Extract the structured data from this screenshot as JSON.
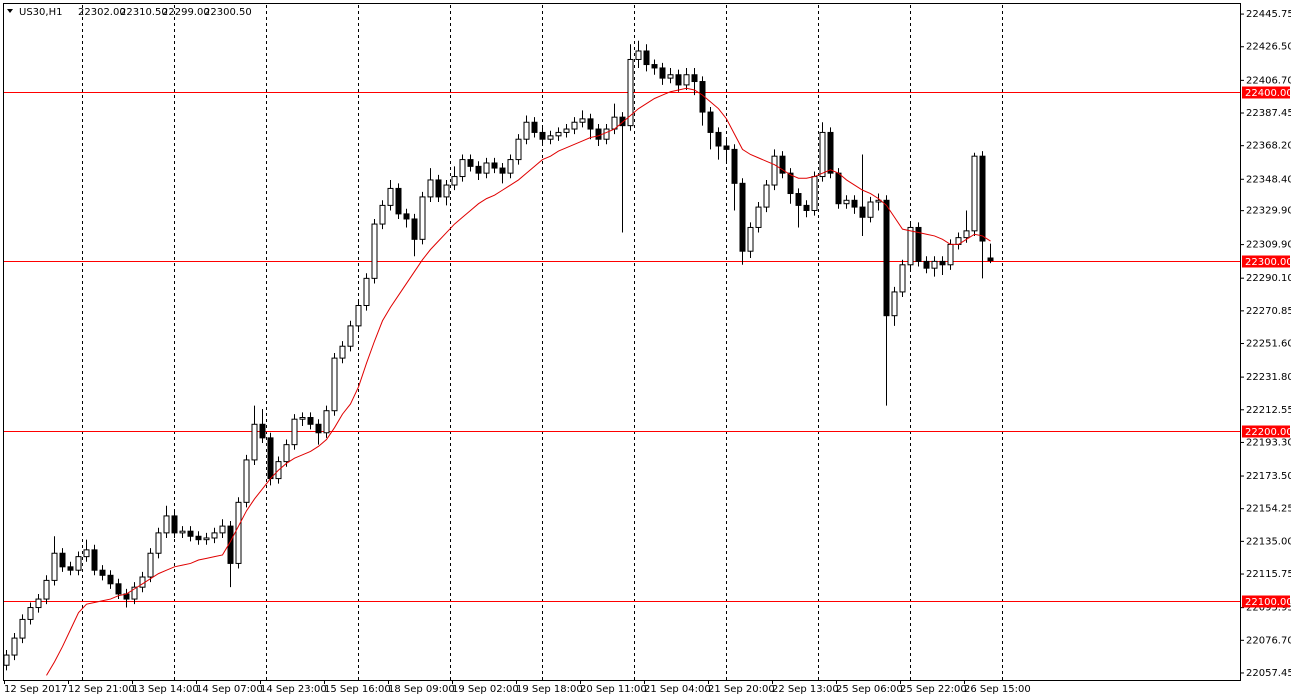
{
  "header": {
    "symbol": "US30,H1",
    "quote": [
      "22302.00",
      "22310.50",
      "22299.00",
      "22300.50"
    ]
  },
  "chart_data": {
    "type": "candlestick",
    "categories": [
      "12 Sep 2017",
      null,
      null,
      null,
      null,
      null,
      null,
      null,
      "12 Sep 21:00",
      null,
      null,
      null,
      null,
      null,
      null,
      null,
      "13 Sep 14:00",
      null,
      null,
      null,
      null,
      null,
      null,
      null,
      "14 Sep 07:00",
      null,
      null,
      null,
      null,
      null,
      null,
      null,
      "14 Sep 23:00",
      null,
      null,
      null,
      null,
      null,
      null,
      null,
      "15 Sep 16:00",
      null,
      null,
      null,
      null,
      null,
      null,
      null,
      "18 Sep 09:00",
      null,
      null,
      null,
      null,
      null,
      null,
      null,
      "19 Sep 02:00",
      null,
      null,
      null,
      null,
      null,
      null,
      null,
      "19 Sep 18:00",
      null,
      null,
      null,
      null,
      null,
      null,
      null,
      "20 Sep 11:00",
      null,
      null,
      null,
      null,
      null,
      null,
      null,
      "21 Sep 04:00",
      null,
      null,
      null,
      null,
      null,
      null,
      null,
      "21 Sep 20:00",
      null,
      null,
      null,
      null,
      null,
      null,
      null,
      "22 Sep 13:00",
      null,
      null,
      null,
      null,
      null,
      null,
      null,
      "25 Sep 06:00",
      null,
      null,
      null,
      null,
      null,
      null,
      null,
      "25 Sep 22:00",
      null,
      null,
      null,
      null,
      null,
      null,
      null,
      "26 Sep 15:00",
      null,
      null,
      null
    ],
    "open": [
      22062,
      22068,
      22078,
      22089,
      22096,
      22101,
      22112,
      22128,
      22120,
      22118,
      22126,
      22130,
      22118,
      22115,
      22110,
      22104,
      22101,
      22108,
      22114,
      22128,
      22140,
      22150,
      22140,
      22141,
      22138,
      22136,
      22137,
      22140,
      22144,
      22122,
      22158,
      22183,
      22204,
      22196,
      22172,
      22182,
      22192,
      22207,
      22208,
      22204,
      22199,
      22212,
      22243,
      22250,
      22262,
      22274,
      22290,
      22322,
      22333,
      22343,
      22328,
      22325,
      22313,
      22338,
      22348,
      22338,
      22345,
      22350,
      22360,
      22356,
      22352,
      22358,
      22355,
      22352,
      22360,
      22372,
      22382,
      22376,
      22372,
      22374,
      22376,
      22378,
      22382,
      22384,
      22378,
      22372,
      22378,
      22385,
      22380,
      22419,
      22424,
      22416,
      22414,
      22408,
      22410,
      22404,
      22410,
      22406,
      22388,
      22376,
      22368,
      22366,
      22346,
      22306,
      22320,
      22332,
      22345,
      22362,
      22352,
      22340,
      22333,
      22330,
      22350,
      22376,
      22352,
      22334,
      22336,
      22332,
      22326,
      22335,
      22336,
      22268,
      22282,
      22298,
      22320,
      22300,
      22296,
      22300,
      22298,
      22310,
      22314,
      22318,
      22362,
      22302
    ],
    "high": [
      22071,
      22081,
      22092,
      22099,
      22104,
      22115,
      22138,
      22131,
      22123,
      22129,
      22136,
      22133,
      22121,
      22118,
      22113,
      22107,
      22111,
      22117,
      22131,
      22143,
      22156,
      22153,
      22144,
      22144,
      22141,
      22140,
      22143,
      22148,
      22147,
      22161,
      22186,
      22215,
      22213,
      22199,
      22185,
      22195,
      22210,
      22211,
      22211,
      22207,
      22215,
      22246,
      22253,
      22265,
      22277,
      22293,
      22325,
      22336,
      22348,
      22346,
      22331,
      22328,
      22341,
      22355,
      22351,
      22348,
      22356,
      22363,
      22363,
      22359,
      22361,
      22361,
      22358,
      22363,
      22375,
      22386,
      22385,
      22379,
      22377,
      22379,
      22381,
      22385,
      22389,
      22387,
      22381,
      22381,
      22393,
      22388,
      22428,
      22430,
      22428,
      22419,
      22417,
      22414,
      22413,
      22414,
      22414,
      22409,
      22391,
      22379,
      22372,
      22369,
      22349,
      22323,
      22335,
      22348,
      22366,
      22365,
      22355,
      22343,
      22336,
      22353,
      22382,
      22379,
      22355,
      22339,
      22339,
      22363,
      22338,
      22340,
      22339,
      22285,
      22301,
      22323,
      22323,
      22303,
      22303,
      22303,
      22313,
      22317,
      22330,
      22364,
      22365,
      22310.5
    ],
    "low": [
      22059,
      22065,
      22075,
      22086,
      22093,
      22098,
      22109,
      22117,
      22115,
      22115,
      22123,
      22115,
      22112,
      22107,
      22101,
      22096,
      22098,
      22105,
      22111,
      22125,
      22137,
      22137,
      22137,
      22135,
      22133,
      22133,
      22134,
      22137,
      22108,
      22119,
      22155,
      22180,
      22193,
      22168,
      22169,
      22179,
      22189,
      22203,
      22201,
      22192,
      22196,
      22209,
      22240,
      22247,
      22259,
      22271,
      22287,
      22319,
      22330,
      22325,
      22320,
      22303,
      22310,
      22335,
      22335,
      22333,
      22342,
      22347,
      22353,
      22348,
      22349,
      22352,
      22346,
      22349,
      22357,
      22369,
      22373,
      22369,
      22369,
      22371,
      22373,
      22375,
      22379,
      22372,
      22368,
      22369,
      22375,
      22317,
      22377,
      22414,
      22412,
      22410,
      22404,
      22405,
      22400,
      22401,
      22398,
      22380,
      22366,
      22360,
      22358,
      22330,
      22298,
      22302,
      22317,
      22329,
      22342,
      22349,
      22334,
      22320,
      22326,
      22327,
      22347,
      22349,
      22331,
      22331,
      22328,
      22315,
      22323,
      22330,
      22215,
      22262,
      22279,
      22295,
      22297,
      22293,
      22291,
      22292,
      22295,
      22307,
      22311,
      22315,
      22290,
      22299
    ],
    "close": [
      22068,
      22078,
      22089,
      22096,
      22101,
      22112,
      22128,
      22120,
      22118,
      22126,
      22130,
      22118,
      22115,
      22110,
      22104,
      22101,
      22108,
      22114,
      22128,
      22140,
      22150,
      22140,
      22141,
      22138,
      22136,
      22137,
      22140,
      22144,
      22122,
      22158,
      22183,
      22204,
      22196,
      22172,
      22182,
      22192,
      22207,
      22208,
      22204,
      22199,
      22212,
      22243,
      22250,
      22262,
      22274,
      22290,
      22322,
      22333,
      22343,
      22328,
      22325,
      22313,
      22338,
      22348,
      22338,
      22345,
      22350,
      22360,
      22356,
      22352,
      22358,
      22355,
      22352,
      22360,
      22372,
      22382,
      22376,
      22372,
      22374,
      22376,
      22378,
      22382,
      22384,
      22378,
      22372,
      22378,
      22385,
      22380,
      22419,
      22424,
      22416,
      22414,
      22408,
      22410,
      22404,
      22410,
      22406,
      22388,
      22376,
      22368,
      22366,
      22346,
      22306,
      22320,
      22332,
      22345,
      22362,
      22352,
      22340,
      22333,
      22330,
      22350,
      22376,
      22352,
      22334,
      22336,
      22332,
      22326,
      22335,
      22336,
      22268,
      22282,
      22298,
      22320,
      22300,
      22296,
      22300,
      22298,
      22310,
      22314,
      22318,
      22362,
      22312,
      22300.5
    ],
    "up_color": "#ffffff",
    "down_color": "#000000",
    "ma": {
      "color": "#e00000",
      "values": [
        null,
        null,
        null,
        null,
        null,
        22056,
        22064,
        22073,
        22083,
        22093,
        22098,
        22099,
        22100,
        22101,
        22103,
        22104,
        22107,
        22110,
        22113,
        22116,
        22118,
        22120,
        22121,
        22122,
        22124,
        22125,
        22126,
        22127,
        22135,
        22144,
        22153,
        22160,
        22166,
        22172,
        22177,
        22181,
        22184,
        22186,
        22188,
        22191,
        22195,
        22202,
        22210,
        22216,
        22226,
        22240,
        22253,
        22265,
        22273,
        22280,
        22287,
        22294,
        22301,
        22307,
        22312,
        22317,
        22322,
        22326,
        22330,
        22334,
        22337,
        22339,
        22342,
        22345,
        22348,
        22352,
        22356,
        22360,
        22362,
        22365,
        22367,
        22369,
        22371,
        22373,
        22374,
        22376,
        22378,
        22382,
        22386,
        22390,
        22393,
        22396,
        22398,
        22400,
        22401,
        22402,
        22401,
        22398,
        22394,
        22390,
        22384,
        22375,
        22366,
        22363,
        22361,
        22359,
        22357,
        22354,
        22351,
        22349,
        22349,
        22350,
        22352,
        22354,
        22352,
        22348,
        22345,
        22342,
        22340,
        22337,
        22333,
        22326,
        22319,
        22318,
        22317,
        22316,
        22315,
        22313,
        22310,
        22310,
        22313,
        22316,
        22315,
        22312
      ]
    },
    "levels": {
      "color": "#ff0000",
      "lines": [
        {
          "value": 22400,
          "label": "22400.00"
        },
        {
          "value": 22300,
          "label": "22300.00"
        },
        {
          "value": 22200,
          "label": "22200.00"
        },
        {
          "value": 22100,
          "label": "22100.00"
        }
      ]
    },
    "ylim": [
      22053.3,
      22451.1
    ],
    "yticks": [
      {
        "value": 22445.75,
        "label": "22445.75"
      },
      {
        "value": 22426.5,
        "label": "22426.50"
      },
      {
        "value": 22406.7,
        "label": "22406.70"
      },
      {
        "value": 22387.45,
        "label": "22387.45"
      },
      {
        "value": 22368.2,
        "label": "22368.20"
      },
      {
        "value": 22348.4,
        "label": "22348.40"
      },
      {
        "value": 22329.9,
        "label": "22329.90"
      },
      {
        "value": 22309.9,
        "label": "22309.90"
      },
      {
        "value": 22290.1,
        "label": "22290.10"
      },
      {
        "value": 22270.85,
        "label": "22270.85"
      },
      {
        "value": 22251.6,
        "label": "22251.60"
      },
      {
        "value": 22231.8,
        "label": "22231.80"
      },
      {
        "value": 22212.55,
        "label": "22212.55"
      },
      {
        "value": 22193.3,
        "label": "22193.30"
      },
      {
        "value": 22173.5,
        "label": "22173.50"
      },
      {
        "value": 22154.25,
        "label": "22154.25"
      },
      {
        "value": 22135,
        "label": "22135.00"
      },
      {
        "value": 22115.75,
        "label": "22115.75"
      },
      {
        "value": 22095.95,
        "label": "22095.95"
      },
      {
        "value": 22076.7,
        "label": "22076.70"
      },
      {
        "value": 22057.45,
        "label": "22057.45"
      }
    ]
  }
}
